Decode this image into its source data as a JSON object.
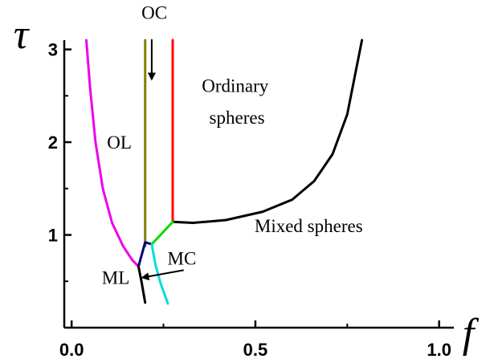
{
  "chart_data": {
    "type": "line",
    "title": "",
    "xlabel": "f",
    "ylabel": "τ",
    "xlim": [
      -0.02,
      1.04
    ],
    "ylim": [
      0.0,
      3.1
    ],
    "x_ticks": [
      {
        "value": 0.0,
        "label": "0.0"
      },
      {
        "value": 0.5,
        "label": "0.5"
      },
      {
        "value": 1.0,
        "label": "1.0"
      }
    ],
    "y_ticks": [
      {
        "value": 1,
        "label": "1"
      },
      {
        "value": 2,
        "label": "2"
      },
      {
        "value": 3,
        "label": "3"
      }
    ],
    "grid": false,
    "legend": "none",
    "series": [
      {
        "color": "#ee00ee",
        "points": [
          [
            0.04,
            3.1
          ],
          [
            0.05,
            2.6
          ],
          [
            0.065,
            2.0
          ],
          [
            0.085,
            1.5
          ],
          [
            0.11,
            1.13
          ],
          [
            0.14,
            0.88
          ],
          [
            0.165,
            0.73
          ],
          [
            0.182,
            0.66
          ]
        ]
      },
      {
        "color": "#808000",
        "points": [
          [
            0.2,
            3.1
          ],
          [
            0.2,
            0.88
          ]
        ]
      },
      {
        "color": "#ff0000",
        "points": [
          [
            0.275,
            3.1
          ],
          [
            0.275,
            1.14
          ]
        ]
      },
      {
        "color": "#000000",
        "points": [
          [
            0.275,
            1.14
          ],
          [
            0.33,
            1.13
          ],
          [
            0.42,
            1.16
          ],
          [
            0.52,
            1.25
          ],
          [
            0.6,
            1.38
          ],
          [
            0.66,
            1.58
          ],
          [
            0.71,
            1.87
          ],
          [
            0.75,
            2.3
          ],
          [
            0.79,
            3.1
          ]
        ]
      },
      {
        "color": "#00dd00",
        "points": [
          [
            0.275,
            1.14
          ],
          [
            0.218,
            0.9
          ]
        ]
      },
      {
        "color": "#000080",
        "points": [
          [
            0.218,
            0.9
          ],
          [
            0.2,
            0.92
          ],
          [
            0.182,
            0.66
          ]
        ]
      },
      {
        "color": "#00dddd",
        "points": [
          [
            0.218,
            0.9
          ],
          [
            0.228,
            0.68
          ],
          [
            0.242,
            0.48
          ],
          [
            0.262,
            0.26
          ]
        ]
      },
      {
        "color": "#000000",
        "points": [
          [
            0.182,
            0.66
          ],
          [
            0.19,
            0.5
          ],
          [
            0.2,
            0.27
          ]
        ]
      }
    ],
    "annotations": [
      {
        "text": "OC",
        "x": 0.225,
        "y": 3.33
      },
      {
        "text": "Ordinary",
        "x": 0.445,
        "y": 2.54
      },
      {
        "text": "spheres",
        "x": 0.45,
        "y": 2.2
      },
      {
        "text": "OL",
        "x": 0.13,
        "y": 1.93
      },
      {
        "text": "Mixed spheres",
        "x": 0.645,
        "y": 1.03
      },
      {
        "text": "MC",
        "x": 0.3,
        "y": 0.68
      },
      {
        "text": "ML",
        "x": 0.12,
        "y": 0.47
      }
    ],
    "arrows": [
      {
        "from": [
          0.218,
          3.11
        ],
        "to": [
          0.218,
          2.68
        ]
      },
      {
        "from": [
          0.305,
          0.62
        ],
        "to": [
          0.193,
          0.54
        ]
      }
    ]
  }
}
